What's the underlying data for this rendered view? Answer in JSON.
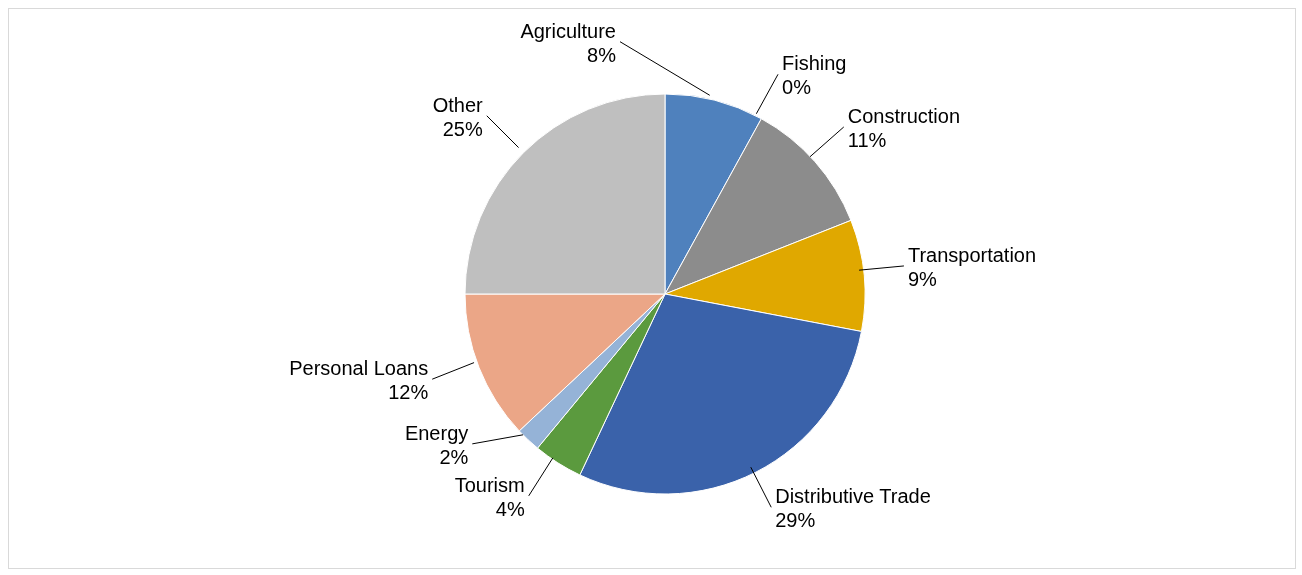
{
  "chart_data": {
    "type": "pie",
    "categories": [
      "Agriculture",
      "Fishing",
      "Construction",
      "Transportation",
      "Distributive Trade",
      "Tourism",
      "Energy",
      "Personal Loans",
      "Other"
    ],
    "values": [
      8,
      0,
      11,
      9,
      29,
      4,
      2,
      12,
      25
    ],
    "value_labels": [
      "8%",
      "0%",
      "11%",
      "9%",
      "29%",
      "4%",
      "2%",
      "12%",
      "25%"
    ],
    "colors": [
      "#4f81bd",
      "#c0504d",
      "#8c8c8c",
      "#e0a800",
      "#3a62aa",
      "#5b9a3e",
      "#95b3d7",
      "#eba687",
      "#bfbfbf"
    ],
    "legend": false
  }
}
